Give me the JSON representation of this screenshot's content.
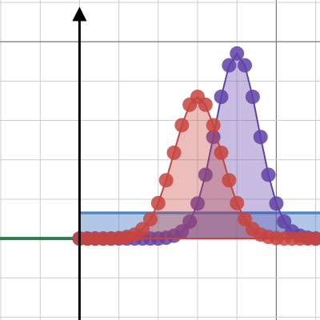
{
  "chart_data": {
    "type": "scatter",
    "xlim": [
      -2.02,
      6.11
    ],
    "ylim": [
      -2.07,
      6.06
    ],
    "xticks": [
      -2,
      -1,
      0,
      1,
      2,
      3,
      4,
      5,
      6
    ],
    "yticks": [
      -2,
      -1,
      0,
      1,
      2,
      3,
      4,
      5,
      6
    ],
    "grid": true,
    "band": {
      "color": "#4f86c6",
      "x": [
        0,
        6.11
      ],
      "values": [
        0.65,
        0.65
      ]
    },
    "line": {
      "color": "#2d7a4f",
      "x": [
        -2.02,
        0
      ],
      "values": [
        0,
        0
      ]
    },
    "x": [
      0,
      0.2,
      0.4,
      0.6,
      0.8,
      1,
      1.2,
      1.4,
      1.6,
      1.8,
      2,
      2.2,
      2.4,
      2.6,
      2.8,
      3,
      3.2,
      3.4,
      3.6,
      3.8,
      4,
      4.2,
      4.4,
      4.6,
      4.8,
      5,
      5.2,
      5.4,
      5.6,
      5.8,
      6
    ],
    "series": [
      {
        "color": "#6042a6",
        "values": [
          0,
          0,
          0,
          0,
          0,
          0,
          0,
          0,
          0,
          0,
          0,
          0.02,
          0.07,
          0.18,
          0.43,
          0.89,
          1.62,
          2.58,
          3.6,
          4.4,
          4.7,
          4.4,
          3.6,
          2.58,
          1.62,
          0.89,
          0.43,
          0.18,
          0.07,
          0.02,
          0
        ]
      },
      {
        "color": "#c74440",
        "values": [
          0,
          0,
          0,
          0,
          0,
          0.01,
          0.04,
          0.1,
          0.24,
          0.49,
          0.9,
          1.48,
          2.18,
          2.88,
          3.4,
          3.6,
          3.4,
          2.88,
          2.18,
          1.48,
          0.9,
          0.49,
          0.24,
          0.1,
          0.04,
          0.01,
          0,
          0,
          0,
          0,
          0
        ]
      }
    ]
  }
}
